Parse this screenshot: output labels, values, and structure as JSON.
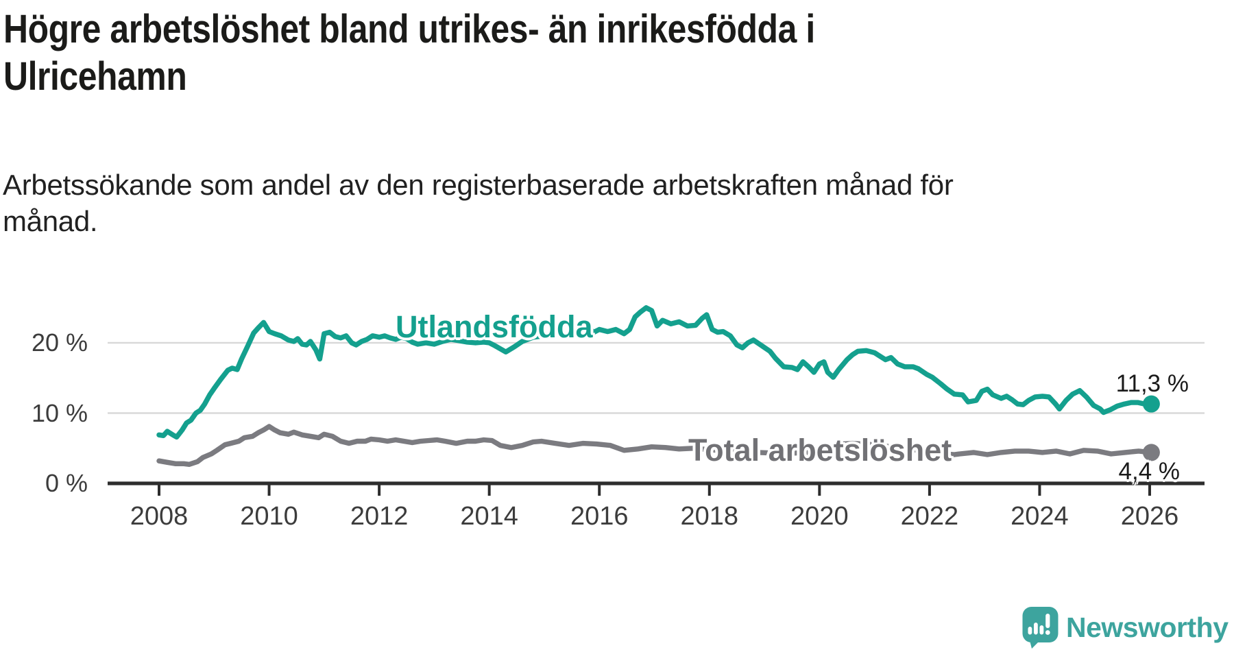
{
  "header": {
    "title_lines": [
      "Högre arbetslöshet bland utrikes- än inrikesfödda i",
      "Ulricehamn"
    ],
    "subtitle_lines": [
      "Arbetssökande som andel av den registerbaserade arbetskraften månad för",
      "månad."
    ]
  },
  "branding": {
    "logo_text": "Newsworthy",
    "logo_icon": "newsworthy-speech-bubble-bar-chart-icon",
    "logo_color": "#3da49e"
  },
  "colors": {
    "series_foreign_born": "#14a08e",
    "series_total": "#7b7b80",
    "grid": "#d9d9d9",
    "axis": "#2d2d2d",
    "tick_text": "#3c3c3c",
    "title_text": "#1b1b19",
    "background": "#ffffff"
  },
  "chart_data": {
    "type": "line",
    "title": "Högre arbetslöshet bland utrikes- än inrikesfödda i Ulricehamn",
    "subtitle": "Arbetssökande som andel av den registerbaserade arbetskraften månad för månad.",
    "grid": "horizontal",
    "legend_position": "inline-labels-on-lines",
    "x_axis": {
      "tick_labels": [
        "2008",
        "2010",
        "2012",
        "2014",
        "2016",
        "2018",
        "2020",
        "2022",
        "2024",
        "2026"
      ],
      "tick_values": [
        2008,
        2010,
        2012,
        2014,
        2016,
        2018,
        2020,
        2022,
        2024,
        2026
      ],
      "range": [
        2007.07,
        2027.0
      ]
    },
    "y_axis": {
      "unit": "%",
      "tick_labels": [
        "0 %",
        "10 %",
        "20 %"
      ],
      "tick_values": [
        0,
        10,
        20
      ],
      "range": [
        0,
        25.5
      ]
    },
    "series": [
      {
        "name": "Utlandsfödda",
        "color": "#14a08e",
        "end_value": 11.3,
        "end_value_label": "11,3 %",
        "points": [
          [
            2008,
            6.9
          ],
          [
            2008.08,
            6.8
          ],
          [
            2008.15,
            7.4
          ],
          [
            2008.25,
            6.9
          ],
          [
            2008.32,
            6.6
          ],
          [
            2008.42,
            7.6
          ],
          [
            2008.5,
            8.6
          ],
          [
            2008.58,
            9
          ],
          [
            2008.67,
            10
          ],
          [
            2008.75,
            10.4
          ],
          [
            2008.83,
            11.3
          ],
          [
            2008.92,
            12.6
          ],
          [
            2009,
            13.5
          ],
          [
            2009.12,
            14.8
          ],
          [
            2009.25,
            16.1
          ],
          [
            2009.33,
            16.4
          ],
          [
            2009.42,
            16.2
          ],
          [
            2009.5,
            17.7
          ],
          [
            2009.62,
            19.7
          ],
          [
            2009.72,
            21.4
          ],
          [
            2009.8,
            22.1
          ],
          [
            2009.9,
            22.9
          ],
          [
            2010,
            21.6
          ],
          [
            2010.1,
            21.3
          ],
          [
            2010.22,
            21
          ],
          [
            2010.35,
            20.4
          ],
          [
            2010.45,
            20.2
          ],
          [
            2010.52,
            20.6
          ],
          [
            2010.6,
            19.8
          ],
          [
            2010.68,
            19.7
          ],
          [
            2010.75,
            20.2
          ],
          [
            2010.85,
            19
          ],
          [
            2010.92,
            17.7
          ],
          [
            2011,
            21.3
          ],
          [
            2011.1,
            21.5
          ],
          [
            2011.2,
            20.9
          ],
          [
            2011.3,
            20.7
          ],
          [
            2011.4,
            21
          ],
          [
            2011.5,
            20
          ],
          [
            2011.58,
            19.7
          ],
          [
            2011.68,
            20.2
          ],
          [
            2011.78,
            20.5
          ],
          [
            2011.88,
            21
          ],
          [
            2012,
            20.8
          ],
          [
            2012.1,
            21
          ],
          [
            2012.2,
            20.7
          ],
          [
            2012.3,
            20.5
          ],
          [
            2012.4,
            20.8
          ],
          [
            2012.5,
            20.6
          ],
          [
            2012.6,
            20.1
          ],
          [
            2012.7,
            19.8
          ],
          [
            2012.85,
            20
          ],
          [
            2013,
            19.8
          ],
          [
            2013.15,
            20.2
          ],
          [
            2013.3,
            20.5
          ],
          [
            2013.45,
            20.3
          ],
          [
            2013.6,
            20.1
          ],
          [
            2013.75,
            20
          ],
          [
            2013.9,
            20.1
          ],
          [
            2014,
            20
          ],
          [
            2014.1,
            19.6
          ],
          [
            2014.3,
            18.7
          ],
          [
            2014.45,
            19.4
          ],
          [
            2014.6,
            20.2
          ],
          [
            2014.8,
            20.8
          ],
          [
            2015,
            21
          ],
          [
            2015.2,
            21.2
          ],
          [
            2015.4,
            21
          ],
          [
            2015.6,
            21.3
          ],
          [
            2015.8,
            22.1
          ],
          [
            2015.9,
            21.5
          ],
          [
            2016,
            21.9
          ],
          [
            2016.15,
            21.6
          ],
          [
            2016.3,
            21.9
          ],
          [
            2016.45,
            21.3
          ],
          [
            2016.55,
            21.9
          ],
          [
            2016.65,
            23.7
          ],
          [
            2016.75,
            24.4
          ],
          [
            2016.85,
            25
          ],
          [
            2016.95,
            24.6
          ],
          [
            2017.05,
            22.4
          ],
          [
            2017.15,
            23.2
          ],
          [
            2017.3,
            22.7
          ],
          [
            2017.45,
            23
          ],
          [
            2017.6,
            22.4
          ],
          [
            2017.75,
            22.5
          ],
          [
            2017.87,
            23.5
          ],
          [
            2017.95,
            24
          ],
          [
            2018.05,
            21.9
          ],
          [
            2018.15,
            21.5
          ],
          [
            2018.25,
            21.6
          ],
          [
            2018.38,
            21
          ],
          [
            2018.5,
            19.7
          ],
          [
            2018.6,
            19.3
          ],
          [
            2018.7,
            20
          ],
          [
            2018.8,
            20.4
          ],
          [
            2018.95,
            19.6
          ],
          [
            2019.1,
            18.8
          ],
          [
            2019.2,
            17.8
          ],
          [
            2019.35,
            16.6
          ],
          [
            2019.5,
            16.5
          ],
          [
            2019.6,
            16.2
          ],
          [
            2019.7,
            17.3
          ],
          [
            2019.8,
            16.6
          ],
          [
            2019.9,
            15.8
          ],
          [
            2020,
            17
          ],
          [
            2020.08,
            17.3
          ],
          [
            2020.15,
            15.8
          ],
          [
            2020.25,
            15.1
          ],
          [
            2020.35,
            16.2
          ],
          [
            2020.5,
            17.6
          ],
          [
            2020.6,
            18.3
          ],
          [
            2020.7,
            18.8
          ],
          [
            2020.85,
            18.9
          ],
          [
            2021,
            18.6
          ],
          [
            2021.1,
            18.1
          ],
          [
            2021.2,
            17.6
          ],
          [
            2021.3,
            17.9
          ],
          [
            2021.42,
            17
          ],
          [
            2021.55,
            16.6
          ],
          [
            2021.7,
            16.6
          ],
          [
            2021.8,
            16.3
          ],
          [
            2021.95,
            15.5
          ],
          [
            2022.05,
            15.1
          ],
          [
            2022.2,
            14.2
          ],
          [
            2022.32,
            13.4
          ],
          [
            2022.45,
            12.7
          ],
          [
            2022.6,
            12.6
          ],
          [
            2022.7,
            11.6
          ],
          [
            2022.85,
            11.8
          ],
          [
            2022.95,
            13.1
          ],
          [
            2023.05,
            13.4
          ],
          [
            2023.15,
            12.6
          ],
          [
            2023.3,
            12.1
          ],
          [
            2023.4,
            12.4
          ],
          [
            2023.5,
            11.9
          ],
          [
            2023.6,
            11.3
          ],
          [
            2023.7,
            11.2
          ],
          [
            2023.8,
            11.8
          ],
          [
            2023.92,
            12.3
          ],
          [
            2024.05,
            12.4
          ],
          [
            2024.17,
            12.3
          ],
          [
            2024.29,
            11.3
          ],
          [
            2024.36,
            10.6
          ],
          [
            2024.48,
            11.8
          ],
          [
            2024.6,
            12.7
          ],
          [
            2024.73,
            13.2
          ],
          [
            2024.85,
            12.3
          ],
          [
            2024.98,
            11.1
          ],
          [
            2025.1,
            10.6
          ],
          [
            2025.16,
            10.1
          ],
          [
            2025.29,
            10.5
          ],
          [
            2025.41,
            11
          ],
          [
            2025.54,
            11.3
          ],
          [
            2025.66,
            11.5
          ],
          [
            2025.79,
            11.5
          ],
          [
            2025.91,
            11.3
          ],
          [
            2026.03,
            11.3
          ]
        ]
      },
      {
        "name": "Total arbetslöshet",
        "color": "#7b7b80",
        "end_value": 4.4,
        "end_value_label": "4,4 %",
        "points": [
          [
            2008,
            3.2
          ],
          [
            2008.15,
            3
          ],
          [
            2008.3,
            2.8
          ],
          [
            2008.45,
            2.8
          ],
          [
            2008.55,
            2.7
          ],
          [
            2008.7,
            3.1
          ],
          [
            2008.8,
            3.7
          ],
          [
            2008.95,
            4.2
          ],
          [
            2009.05,
            4.7
          ],
          [
            2009.2,
            5.5
          ],
          [
            2009.3,
            5.7
          ],
          [
            2009.45,
            6
          ],
          [
            2009.55,
            6.5
          ],
          [
            2009.7,
            6.7
          ],
          [
            2009.8,
            7.2
          ],
          [
            2009.9,
            7.6
          ],
          [
            2010,
            8.1
          ],
          [
            2010.1,
            7.6
          ],
          [
            2010.2,
            7.2
          ],
          [
            2010.35,
            7
          ],
          [
            2010.45,
            7.3
          ],
          [
            2010.6,
            6.9
          ],
          [
            2010.75,
            6.7
          ],
          [
            2010.9,
            6.5
          ],
          [
            2011,
            7
          ],
          [
            2011.15,
            6.7
          ],
          [
            2011.3,
            6
          ],
          [
            2011.45,
            5.7
          ],
          [
            2011.6,
            6
          ],
          [
            2011.75,
            6
          ],
          [
            2011.85,
            6.3
          ],
          [
            2012,
            6.2
          ],
          [
            2012.15,
            6
          ],
          [
            2012.3,
            6.2
          ],
          [
            2012.45,
            6
          ],
          [
            2012.6,
            5.8
          ],
          [
            2012.75,
            6
          ],
          [
            2012.9,
            6.1
          ],
          [
            2013.05,
            6.2
          ],
          [
            2013.2,
            6
          ],
          [
            2013.4,
            5.7
          ],
          [
            2013.6,
            6
          ],
          [
            2013.75,
            6
          ],
          [
            2013.9,
            6.2
          ],
          [
            2014.05,
            6.1
          ],
          [
            2014.2,
            5.4
          ],
          [
            2014.4,
            5.1
          ],
          [
            2014.6,
            5.4
          ],
          [
            2014.8,
            5.9
          ],
          [
            2014.95,
            6
          ],
          [
            2015.2,
            5.7
          ],
          [
            2015.45,
            5.4
          ],
          [
            2015.7,
            5.7
          ],
          [
            2015.95,
            5.6
          ],
          [
            2016.2,
            5.4
          ],
          [
            2016.45,
            4.7
          ],
          [
            2016.7,
            4.9
          ],
          [
            2016.95,
            5.2
          ],
          [
            2017.2,
            5.1
          ],
          [
            2017.45,
            4.9
          ],
          [
            2017.7,
            5
          ],
          [
            2018,
            4.8
          ],
          [
            2018.3,
            4.6
          ],
          [
            2018.6,
            4.5
          ],
          [
            2018.9,
            4.4
          ],
          [
            2019.2,
            4.3
          ],
          [
            2019.5,
            4.3
          ],
          [
            2019.8,
            4.4
          ],
          [
            2020,
            4.6
          ],
          [
            2020.2,
            5.2
          ],
          [
            2020.4,
            5.6
          ],
          [
            2020.6,
            5.7
          ],
          [
            2020.8,
            5.6
          ],
          [
            2021,
            5.5
          ],
          [
            2021.3,
            5.2
          ],
          [
            2021.6,
            4.9
          ],
          [
            2021.9,
            4.6
          ],
          [
            2022.1,
            4.4
          ],
          [
            2022.3,
            4.2
          ],
          [
            2022.45,
            4.1
          ],
          [
            2022.55,
            4.2
          ],
          [
            2022.8,
            4.4
          ],
          [
            2023.05,
            4.1
          ],
          [
            2023.3,
            4.4
          ],
          [
            2023.55,
            4.6
          ],
          [
            2023.8,
            4.6
          ],
          [
            2024.05,
            4.4
          ],
          [
            2024.3,
            4.6
          ],
          [
            2024.55,
            4.2
          ],
          [
            2024.8,
            4.7
          ],
          [
            2025.05,
            4.6
          ],
          [
            2025.3,
            4.2
          ],
          [
            2025.55,
            4.4
          ],
          [
            2025.8,
            4.6
          ],
          [
            2026.03,
            4.4
          ]
        ]
      }
    ]
  }
}
